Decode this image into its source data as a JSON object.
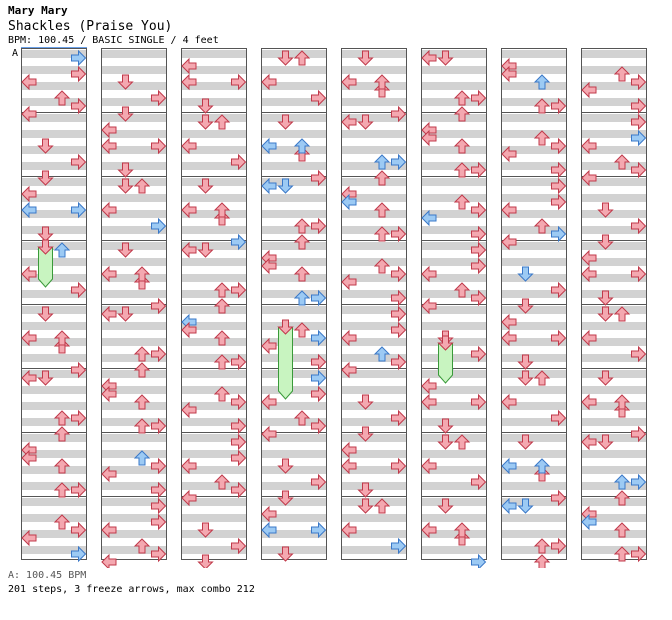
{
  "artist": "Mary Mary",
  "song": "Shackles (Praise You)",
  "meta": "BPM: 100.45 / BASIC SINGLE / 4 feet",
  "section_label": "A",
  "bpm_line": "A: 100.45 BPM",
  "summary": "201 steps, 3 freeze arrows, max combo 212",
  "colors": {
    "red": "#f4a8b0",
    "red_stroke": "#c0394a",
    "blue": "#9ccaf4",
    "blue_stroke": "#3a78c8",
    "freeze": "#c8f4c0",
    "freeze_stroke": "#3a9a3a",
    "band": "#d2d2d2"
  },
  "chart_data": {
    "type": "table",
    "lanes": [
      "left",
      "down",
      "up",
      "right"
    ],
    "columns": 8,
    "measures_per_column": 8,
    "notes": [
      [
        [
          0,
          3,
          "l",
          "red"
        ],
        [
          0,
          5,
          "u",
          "red"
        ],
        [
          0,
          7,
          "l",
          "red"
        ],
        [
          1,
          0,
          "r",
          "red"
        ],
        [
          1,
          2,
          "r",
          "red"
        ],
        [
          1,
          6,
          "r",
          "red"
        ]
      ],
      [
        [
          1,
          3,
          "d",
          "red"
        ],
        [
          1,
          5,
          "r",
          "red"
        ],
        [
          1,
          7,
          "d",
          "red"
        ]
      ],
      [
        [
          1,
          3,
          "r",
          "red"
        ],
        [
          1,
          6,
          "d",
          "red"
        ],
        [
          1,
          8,
          "r",
          "red"
        ],
        [
          2,
          1,
          "l",
          "red"
        ],
        [
          2,
          3,
          "l",
          "red"
        ]
      ],
      [
        [
          0,
          0,
          "d",
          "red"
        ],
        [
          0,
          5,
          "r",
          "red"
        ],
        [
          1,
          0,
          "u",
          "red"
        ],
        [
          1,
          3,
          "l",
          "red"
        ]
      ],
      [
        [
          0,
          3,
          "l",
          "red"
        ],
        [
          0,
          4,
          "u",
          "red"
        ],
        [
          0,
          7,
          "r",
          "red"
        ],
        [
          1,
          0,
          "d",
          "red"
        ],
        [
          1,
          3,
          "u",
          "red"
        ]
      ],
      [
        [
          0,
          0,
          "l",
          "red"
        ],
        [
          0,
          5,
          "r",
          "red"
        ],
        [
          0,
          7,
          "u",
          "red"
        ],
        [
          1,
          0,
          "d",
          "red"
        ],
        [
          1,
          5,
          "u",
          "red"
        ]
      ],
      [
        [
          0,
          1,
          "l",
          "red"
        ],
        [
          0,
          3,
          "u",
          "red"
        ],
        [
          0,
          6,
          "r",
          "red"
        ],
        [
          1,
          2,
          "l",
          "red"
        ],
        [
          1,
          6,
          "u",
          "red"
        ]
      ],
      [
        [
          0,
          2,
          "u",
          "red"
        ],
        [
          0,
          4,
          "l",
          "red"
        ],
        [
          0,
          6,
          "r",
          "red"
        ],
        [
          1,
          3,
          "r",
          "red"
        ]
      ]
    ]
  }
}
